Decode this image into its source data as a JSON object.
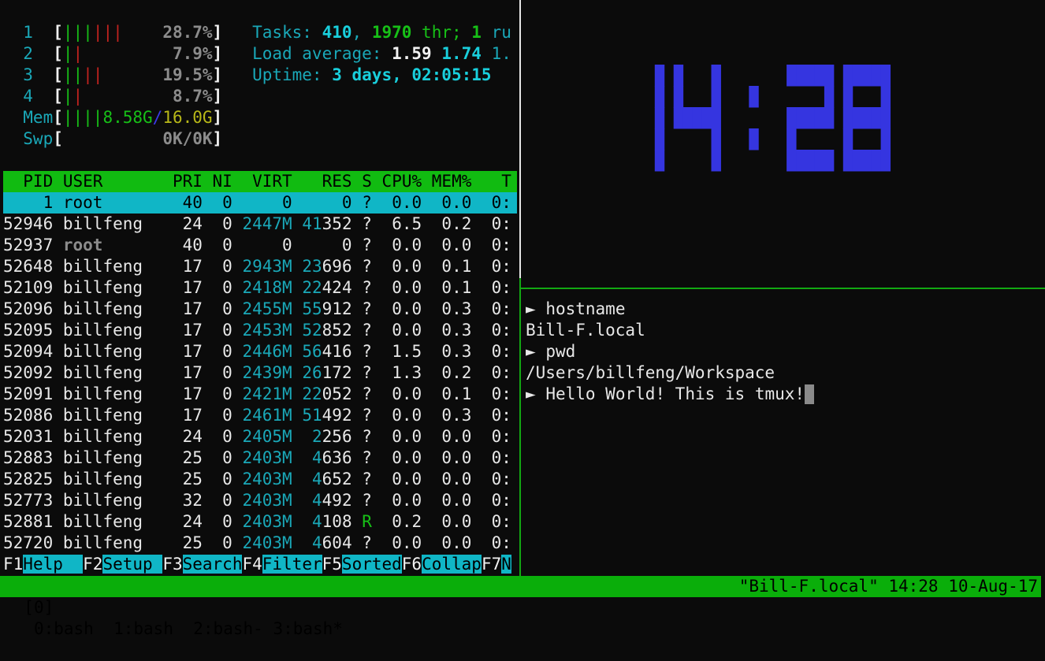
{
  "htop": {
    "meters": [
      {
        "label": "1",
        "bars": [
          {
            "c": "gr",
            "n": 3
          },
          {
            "c": "rd",
            "n": 3
          }
        ],
        "value": "28.7%"
      },
      {
        "label": "2",
        "bars": [
          {
            "c": "gr",
            "n": 1
          },
          {
            "c": "rd",
            "n": 1
          }
        ],
        "value": "7.9%"
      },
      {
        "label": "3",
        "bars": [
          {
            "c": "gr",
            "n": 2
          },
          {
            "c": "rd",
            "n": 2
          }
        ],
        "value": "19.5%"
      },
      {
        "label": "4",
        "bars": [
          {
            "c": "gr",
            "n": 1
          },
          {
            "c": "rd",
            "n": 1
          }
        ],
        "value": "8.7%"
      }
    ],
    "cpu_usage_percent": [
      28.7,
      7.9,
      19.5,
      8.7
    ],
    "mem": {
      "label": "Mem",
      "used": "8.58G",
      "total": "16.0G",
      "bars": 4
    },
    "swp": {
      "label": "Swp",
      "value": "0K/0K"
    },
    "tasks": {
      "label": "Tasks: ",
      "count": "410",
      "threads": "1970",
      "thr_label": " thr; ",
      "running": "1",
      "running_label": " ru"
    },
    "load": {
      "label": "Load average: ",
      "l1": "1.59",
      "l5": "1.74",
      "l15": "1."
    },
    "uptime": {
      "label": "Uptime: ",
      "value": "3 days, 02:05:15"
    },
    "columns": [
      "PID",
      "USER",
      "PRI",
      "NI",
      "VIRT",
      "RES",
      "S",
      "CPU%",
      "MEM%",
      "T"
    ],
    "processes": [
      {
        "pid": "1",
        "user": "root",
        "pri": "40",
        "ni": "0",
        "virt": "0",
        "res": "0",
        "s": "?",
        "cpu": "0.0",
        "mem": "0.0",
        "time": "0:",
        "selected": true
      },
      {
        "pid": "52946",
        "user": "billfeng",
        "pri": "24",
        "ni": "0",
        "virt": "2447M",
        "res": "41352",
        "s": "?",
        "cpu": "6.5",
        "mem": "0.2",
        "time": "0:"
      },
      {
        "pid": "52937",
        "user": "root",
        "pri": "40",
        "ni": "0",
        "virt": "0",
        "res": "0",
        "s": "?",
        "cpu": "0.0",
        "mem": "0.0",
        "time": "0:"
      },
      {
        "pid": "52648",
        "user": "billfeng",
        "pri": "17",
        "ni": "0",
        "virt": "2943M",
        "res": "23696",
        "s": "?",
        "cpu": "0.0",
        "mem": "0.1",
        "time": "0:"
      },
      {
        "pid": "52109",
        "user": "billfeng",
        "pri": "17",
        "ni": "0",
        "virt": "2418M",
        "res": "22424",
        "s": "?",
        "cpu": "0.0",
        "mem": "0.1",
        "time": "0:"
      },
      {
        "pid": "52096",
        "user": "billfeng",
        "pri": "17",
        "ni": "0",
        "virt": "2455M",
        "res": "55912",
        "s": "?",
        "cpu": "0.0",
        "mem": "0.3",
        "time": "0:"
      },
      {
        "pid": "52095",
        "user": "billfeng",
        "pri": "17",
        "ni": "0",
        "virt": "2453M",
        "res": "52852",
        "s": "?",
        "cpu": "0.0",
        "mem": "0.3",
        "time": "0:"
      },
      {
        "pid": "52094",
        "user": "billfeng",
        "pri": "17",
        "ni": "0",
        "virt": "2446M",
        "res": "56416",
        "s": "?",
        "cpu": "1.5",
        "mem": "0.3",
        "time": "0:"
      },
      {
        "pid": "52092",
        "user": "billfeng",
        "pri": "17",
        "ni": "0",
        "virt": "2439M",
        "res": "26172",
        "s": "?",
        "cpu": "1.3",
        "mem": "0.2",
        "time": "0:"
      },
      {
        "pid": "52091",
        "user": "billfeng",
        "pri": "17",
        "ni": "0",
        "virt": "2421M",
        "res": "22052",
        "s": "?",
        "cpu": "0.0",
        "mem": "0.1",
        "time": "0:"
      },
      {
        "pid": "52086",
        "user": "billfeng",
        "pri": "17",
        "ni": "0",
        "virt": "2461M",
        "res": "51492",
        "s": "?",
        "cpu": "0.0",
        "mem": "0.3",
        "time": "0:"
      },
      {
        "pid": "52031",
        "user": "billfeng",
        "pri": "24",
        "ni": "0",
        "virt": "2405M",
        "res": "2256",
        "s": "?",
        "cpu": "0.0",
        "mem": "0.0",
        "time": "0:"
      },
      {
        "pid": "52883",
        "user": "billfeng",
        "pri": "25",
        "ni": "0",
        "virt": "2403M",
        "res": "4636",
        "s": "?",
        "cpu": "0.0",
        "mem": "0.0",
        "time": "0:"
      },
      {
        "pid": "52825",
        "user": "billfeng",
        "pri": "25",
        "ni": "0",
        "virt": "2403M",
        "res": "4652",
        "s": "?",
        "cpu": "0.0",
        "mem": "0.0",
        "time": "0:"
      },
      {
        "pid": "52773",
        "user": "billfeng",
        "pri": "32",
        "ni": "0",
        "virt": "2403M",
        "res": "4492",
        "s": "?",
        "cpu": "0.0",
        "mem": "0.0",
        "time": "0:"
      },
      {
        "pid": "52881",
        "user": "billfeng",
        "pri": "24",
        "ni": "0",
        "virt": "2403M",
        "res": "4108",
        "s": "R",
        "cpu": "0.2",
        "mem": "0.0",
        "time": "0:"
      },
      {
        "pid": "52720",
        "user": "billfeng",
        "pri": "25",
        "ni": "0",
        "virt": "2403M",
        "res": "4604",
        "s": "?",
        "cpu": "0.0",
        "mem": "0.0",
        "time": "0:"
      }
    ],
    "fkeys": [
      {
        "key": "F1",
        "label": "Help"
      },
      {
        "key": "F2",
        "label": "Setup"
      },
      {
        "key": "F3",
        "label": "Search"
      },
      {
        "key": "F4",
        "label": "Filter"
      },
      {
        "key": "F5",
        "label": "Sorted"
      },
      {
        "key": "F6",
        "label": "Collap"
      },
      {
        "key": "F7",
        "label": "N"
      }
    ]
  },
  "clock": {
    "time": "14:28",
    "color": "#3535e0"
  },
  "shell": {
    "lines": [
      {
        "prompt": true,
        "text": "hostname"
      },
      {
        "prompt": false,
        "text": "Bill-F.local"
      },
      {
        "prompt": true,
        "text": "pwd"
      },
      {
        "prompt": false,
        "text": "/Users/billfeng/Workspace"
      },
      {
        "prompt": true,
        "text": "Hello World! This is tmux!",
        "cursor": true
      }
    ],
    "prompt_symbol": "►"
  },
  "status": {
    "session": "[0]",
    "windows": [
      "0:bash",
      "1:bash",
      "2:bash-",
      "3:bash*"
    ],
    "right": "\"Bill-F.local\" 14:28 10-Aug-17"
  }
}
